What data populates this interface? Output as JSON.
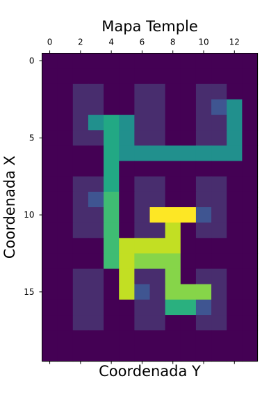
{
  "chart_data": {
    "type": "heatmap",
    "title": "Mapa Temple",
    "xlabel": "Coordenada Y",
    "ylabel": "Coordenada X",
    "x_ticks": [
      0,
      2,
      4,
      6,
      8,
      10,
      12
    ],
    "y_ticks": [
      0,
      5,
      10,
      15
    ],
    "x_tick_position": "top",
    "n_cols": 14,
    "n_rows": 20,
    "grid": false,
    "colormap": "viridis",
    "color_levels": {
      "0": "#440154",
      "1": "#482d6e",
      "2": "#3f5591",
      "3": "#21908d",
      "4": "#22a884",
      "5": "#2ab07f",
      "6": "#3fbc73",
      "7": "#86d549",
      "8": "#c2df23",
      "9": "#fde725"
    },
    "grid_values": [
      [
        0,
        0,
        0,
        0,
        0,
        0,
        0,
        0,
        0,
        0,
        0,
        0,
        0,
        0
      ],
      [
        0,
        0,
        0,
        0,
        0,
        0,
        0,
        0,
        0,
        0,
        0,
        0,
        0,
        0
      ],
      [
        0,
        0,
        1,
        1,
        0,
        0,
        1,
        1,
        0,
        0,
        1,
        1,
        0,
        0
      ],
      [
        0,
        0,
        1,
        1,
        0,
        0,
        1,
        1,
        0,
        0,
        1,
        2,
        3,
        0
      ],
      [
        0,
        0,
        1,
        3,
        4,
        3,
        1,
        1,
        0,
        0,
        1,
        1,
        3,
        0
      ],
      [
        0,
        0,
        1,
        1,
        4,
        3,
        1,
        1,
        0,
        0,
        1,
        1,
        3,
        0
      ],
      [
        0,
        0,
        0,
        0,
        4,
        3,
        3,
        3,
        3,
        3,
        3,
        3,
        3,
        0
      ],
      [
        0,
        0,
        0,
        0,
        4,
        0,
        0,
        0,
        0,
        0,
        0,
        0,
        0,
        0
      ],
      [
        0,
        0,
        1,
        1,
        4,
        0,
        1,
        1,
        0,
        0,
        1,
        1,
        0,
        0
      ],
      [
        0,
        0,
        1,
        2,
        6,
        0,
        1,
        1,
        0,
        0,
        1,
        1,
        0,
        0
      ],
      [
        0,
        0,
        1,
        1,
        6,
        0,
        1,
        9,
        9,
        9,
        2,
        1,
        0,
        0
      ],
      [
        0,
        0,
        1,
        1,
        6,
        0,
        1,
        1,
        8,
        0,
        1,
        1,
        0,
        0
      ],
      [
        0,
        0,
        0,
        0,
        6,
        8,
        8,
        8,
        8,
        0,
        0,
        0,
        0,
        0
      ],
      [
        0,
        0,
        0,
        0,
        6,
        8,
        7,
        7,
        7,
        0,
        0,
        0,
        0,
        0
      ],
      [
        0,
        0,
        1,
        1,
        0,
        8,
        1,
        1,
        7,
        0,
        1,
        1,
        0,
        0
      ],
      [
        0,
        0,
        1,
        1,
        0,
        8,
        2,
        1,
        7,
        7,
        7,
        1,
        0,
        0
      ],
      [
        0,
        0,
        1,
        1,
        0,
        0,
        1,
        1,
        5,
        5,
        2,
        1,
        0,
        0
      ],
      [
        0,
        0,
        1,
        1,
        0,
        0,
        1,
        1,
        0,
        0,
        1,
        1,
        0,
        0
      ],
      [
        0,
        0,
        0,
        0,
        0,
        0,
        0,
        0,
        0,
        0,
        0,
        0,
        0,
        0
      ],
      [
        0,
        0,
        0,
        0,
        0,
        0,
        0,
        0,
        0,
        0,
        0,
        0,
        0,
        0
      ]
    ]
  }
}
